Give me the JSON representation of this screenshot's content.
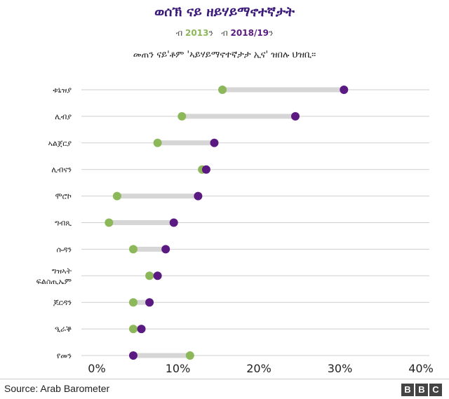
{
  "chart_data": {
    "type": "dumbbell",
    "title": "ወሰኽ ናይ ዘይሃይማኖተኛታት",
    "subtitle": "መጠን ናይ'ቶም 'ኣይሃይማኖተኛታታ ኢና' ዝበሉ ህዝቢ።",
    "legend": {
      "prefix1": "ብ",
      "label1": "2013",
      "suffix1": "ን",
      "prefix2": "ብ",
      "label2": "2018/19",
      "suffix2": "ን"
    },
    "categories": [
      [
        "ቱኒዝያ"
      ],
      [
        "ሊብያ"
      ],
      [
        "ኣልጀርያ"
      ],
      [
        "ሊብናን"
      ],
      [
        "ሞሮኮ"
      ],
      [
        "ግብጺ"
      ],
      [
        "ሱዳን"
      ],
      [
        "ግዝኣት",
        "ፍልስጢኤም"
      ],
      [
        "ጆርዳን"
      ],
      [
        "ዒራቕ"
      ],
      [
        "የመን"
      ]
    ],
    "series": [
      {
        "name": "2013",
        "color": "#8db85a",
        "values": [
          15.5,
          10.5,
          7.5,
          13.0,
          2.5,
          1.5,
          4.5,
          6.5,
          4.5,
          4.5,
          11.5
        ]
      },
      {
        "name": "2018/19",
        "color": "#5b1a82",
        "values": [
          30.5,
          24.5,
          14.5,
          13.5,
          12.5,
          9.5,
          8.5,
          7.5,
          6.5,
          5.5,
          4.5
        ]
      }
    ],
    "xlim": [
      0,
      40
    ],
    "xticks": [
      "0%",
      "10%",
      "20%",
      "30%",
      "40%"
    ],
    "xtick_values": [
      0,
      10,
      20,
      30,
      40
    ]
  },
  "footer": {
    "source": "Source: Arab Barometer",
    "logo_letters": [
      "B",
      "B",
      "C"
    ]
  }
}
